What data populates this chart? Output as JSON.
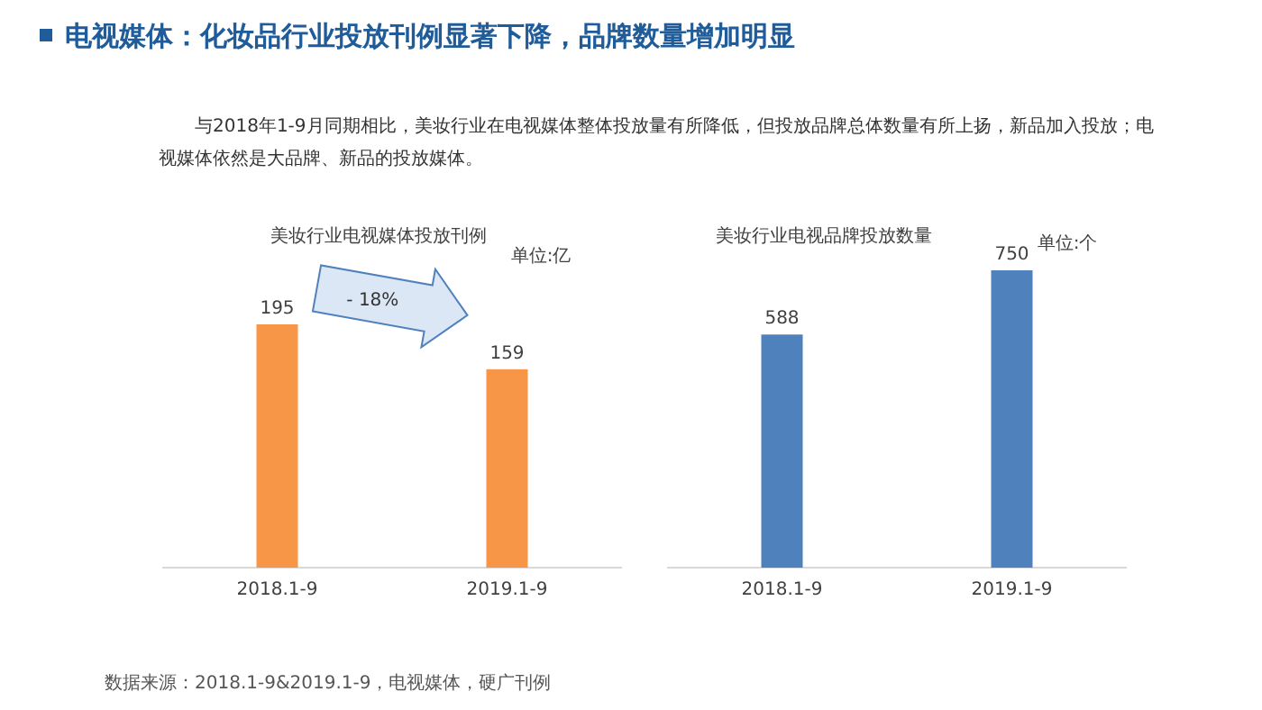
{
  "chart_data": [
    {
      "type": "other",
      "title": "电视媒体：化妆品行业投放刊例显著下降，品牌数量增加明显",
      "subtitle": "与2018年1-9月同期相比，美妆行业在电视媒体整体投放量有所降低，但投放品牌总体数量有所上扬，新品加入投放；电视媒体依然是大品牌、新品的投放媒体。",
      "annotations": [
        "数据来源：2018.1-9&2019.1-9，电视媒体，硬广刊例"
      ]
    },
    {
      "type": "bar",
      "title": "美妆行业电视媒体投放刊例",
      "annotations": [
        "单位:亿",
        "- 18%"
      ],
      "categories": [
        "2018.1-9",
        "2019.1-9"
      ],
      "values": [
        195,
        159
      ],
      "color": "#f79646",
      "data_labels": true
    },
    {
      "type": "bar",
      "title": "美妆行业电视品牌投放数量",
      "annotations": [
        "单位:个"
      ],
      "categories": [
        "2018.1-9",
        "2019.1-9"
      ],
      "values": [
        588,
        750
      ],
      "color": "#4f81bd",
      "data_labels": true
    }
  ]
}
